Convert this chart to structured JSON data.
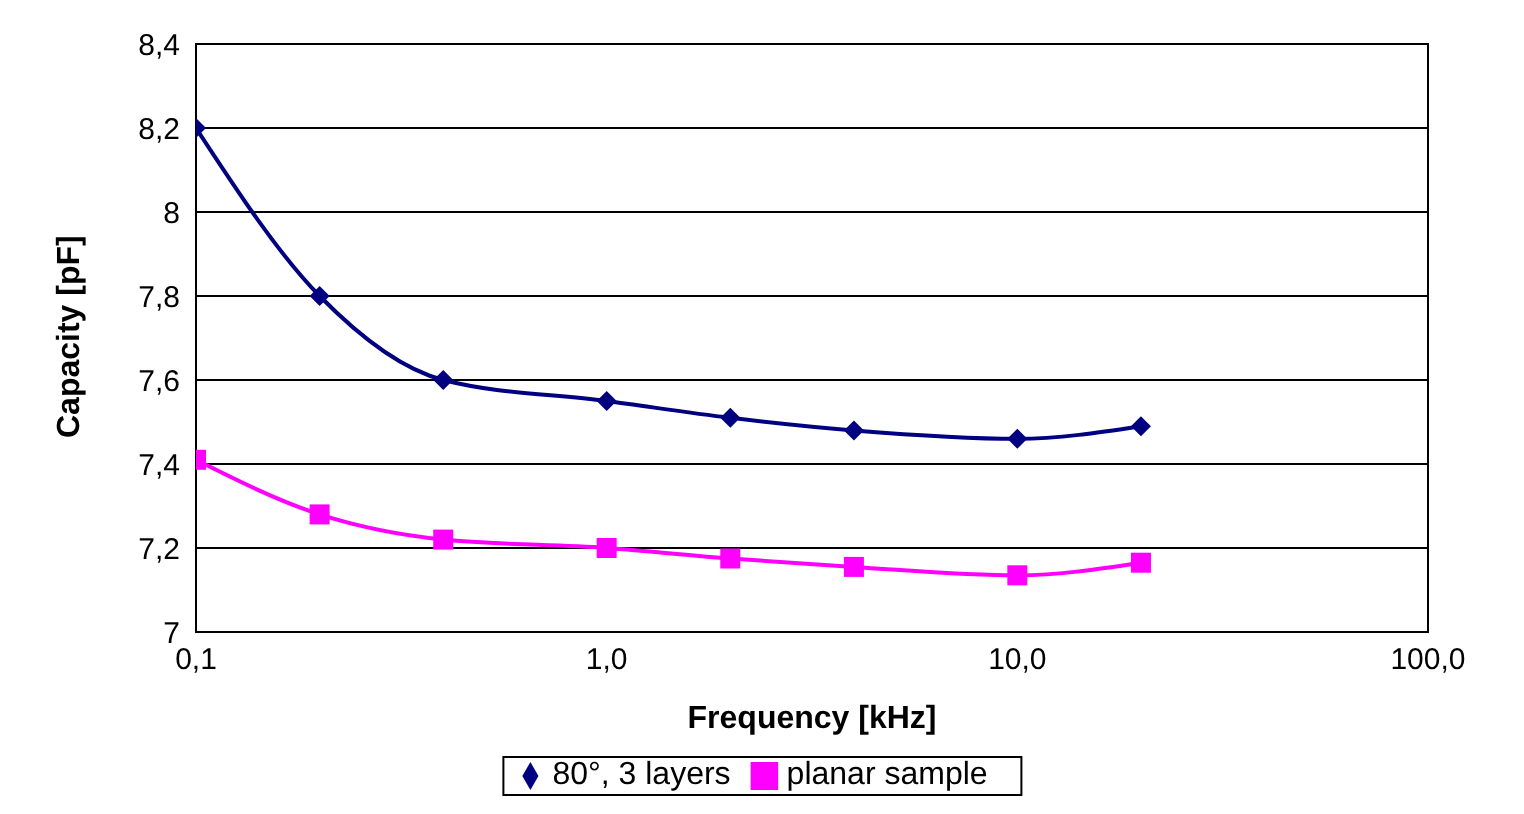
{
  "chart_data": {
    "type": "line",
    "xlabel": "Frequency [kHz]",
    "ylabel": "Capacity [pF]",
    "x": [
      0.1,
      0.2,
      0.4,
      1,
      2,
      4,
      10,
      20
    ],
    "series": [
      {
        "name": "80°, 3 layers",
        "color": "#000080",
        "marker": "diamond",
        "values": [
          8.2,
          7.8,
          7.6,
          7.55,
          7.51,
          7.48,
          7.46,
          7.49
        ]
      },
      {
        "name": "planar sample",
        "color": "#ff00ff",
        "marker": "square",
        "values": [
          7.41,
          7.28,
          7.22,
          7.2,
          7.175,
          7.155,
          7.135,
          7.165
        ]
      }
    ],
    "log": "x",
    "xlim": [
      0.1,
      100
    ],
    "xticks": [
      {
        "value": 0.1,
        "label": "0,1"
      },
      {
        "value": 1,
        "label": "1,0"
      },
      {
        "value": 10,
        "label": "10,0"
      },
      {
        "value": 100,
        "label": "100,0"
      }
    ],
    "ylim": [
      7,
      8.4
    ],
    "yticks": [
      7,
      {
        "value": 7.2,
        "label": "7,2"
      },
      {
        "value": 7.4,
        "label": "7,4"
      },
      {
        "value": 7.6,
        "label": "7,6"
      },
      {
        "value": 7.8,
        "label": "7,8"
      },
      8,
      {
        "value": 8.2,
        "label": "8,2"
      },
      {
        "value": 8.4,
        "label": "8,4"
      }
    ],
    "grid": "y",
    "legend": "bottom",
    "line_style": "solid"
  }
}
